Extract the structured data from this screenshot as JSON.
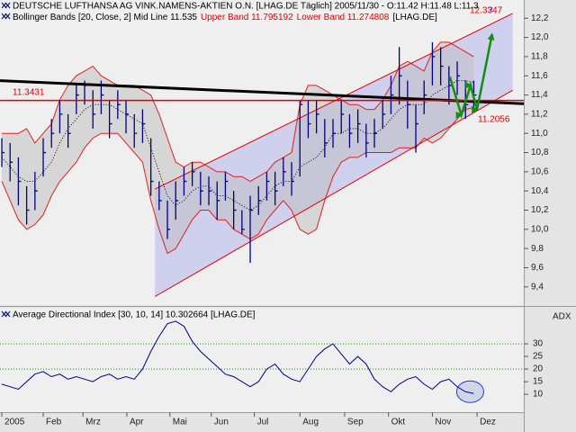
{
  "chart_data": [
    {
      "type": "ohlc",
      "title": "DEUTSCHE LUFTHANSA AG VINK.NAMENS-AKTIEN O.N. [LHAG.DE  Täglich] 2005/11/30 - O:11.42 H:11.48 L:11.3",
      "legend": [
        {
          "text": "Bollinger Bands [20, Close, 2] Mid Line 11.535",
          "color": "#000000"
        },
        {
          "text": "Upper Band 11.795192",
          "color": "#e00000"
        },
        {
          "text": "Lower Band 11.274808",
          "color": "#e00000"
        },
        {
          "text": "[LHAG.DE]",
          "color": "#000000"
        }
      ],
      "xlim": [
        -0.22,
        63.04
      ],
      "ylim": [
        9.22,
        12.39
      ],
      "yticks": [
        {
          "value": 9.4,
          "label": "9,4"
        },
        {
          "value": 9.6,
          "label": "9,6"
        },
        {
          "value": 9.8,
          "label": "9,8"
        },
        {
          "value": 10.0,
          "label": "10,0"
        },
        {
          "value": 10.2,
          "label": "10,2"
        },
        {
          "value": 10.4,
          "label": "10,4"
        },
        {
          "value": 10.6,
          "label": "10,6"
        },
        {
          "value": 10.8,
          "label": "10,8"
        },
        {
          "value": 11.0,
          "label": "11,0"
        },
        {
          "value": 11.2,
          "label": "11,2"
        },
        {
          "value": 11.4,
          "label": "11,4"
        },
        {
          "value": 11.6,
          "label": "11,6"
        },
        {
          "value": 11.8,
          "label": "11,8"
        },
        {
          "value": 12.0,
          "label": "12,0"
        },
        {
          "value": 12.2,
          "label": "12,2"
        }
      ],
      "color": "#000080",
      "high": [
        10.95,
        10.9,
        10.75,
        10.45,
        10.6,
        10.95,
        11.15,
        11.35,
        11.2,
        11.5,
        11.55,
        11.45,
        11.55,
        11.35,
        11.45,
        11.35,
        11.2,
        11.25,
        10.95,
        10.5,
        10.3,
        10.5,
        10.65,
        10.7,
        10.6,
        10.55,
        10.5,
        10.6,
        10.4,
        10.2,
        10.35,
        10.45,
        10.6,
        10.6,
        10.75,
        10.7,
        11.35,
        11.35,
        11.35,
        11.15,
        11.15,
        11.35,
        11.2,
        11.25,
        11.1,
        11.15,
        11.35,
        11.6,
        11.9,
        11.55,
        11.3,
        11.55,
        11.95,
        11.9,
        11.7,
        11.75,
        11.55,
        11.55
      ],
      "low": [
        10.65,
        10.5,
        10.25,
        10.05,
        10.2,
        10.55,
        10.85,
        11.0,
        10.85,
        11.2,
        11.3,
        11.05,
        11.2,
        10.95,
        11.15,
        11.0,
        10.85,
        10.9,
        10.35,
        10.2,
        9.9,
        10.1,
        10.35,
        10.45,
        10.25,
        10.25,
        10.1,
        10.3,
        10.0,
        9.95,
        9.65,
        10.15,
        10.3,
        10.25,
        10.45,
        10.35,
        10.55,
        10.95,
        11.0,
        10.75,
        10.85,
        11.0,
        10.85,
        10.9,
        10.75,
        10.85,
        11.05,
        11.2,
        11.3,
        11.05,
        10.8,
        11.2,
        11.5,
        11.5,
        11.3,
        11.4,
        11.15,
        11.25
      ],
      "close": [
        10.8,
        10.7,
        10.5,
        10.2,
        10.4,
        10.8,
        11.0,
        11.2,
        11.0,
        11.4,
        11.5,
        11.2,
        11.4,
        11.1,
        11.3,
        11.2,
        11.0,
        11.1,
        10.5,
        10.3,
        10.0,
        10.3,
        10.5,
        10.6,
        10.4,
        10.4,
        10.3,
        10.5,
        10.2,
        10.0,
        10.2,
        10.3,
        10.5,
        10.4,
        10.6,
        10.5,
        11.3,
        11.1,
        11.2,
        10.9,
        11.0,
        11.2,
        11.0,
        11.1,
        10.9,
        11.0,
        11.2,
        11.4,
        11.6,
        11.3,
        11.1,
        11.4,
        11.8,
        11.7,
        11.5,
        11.6,
        11.3,
        11.4
      ],
      "bands": {
        "line_color": "#e02020",
        "fill": "#bdbdbd",
        "mid_color": "#000000",
        "upper": [
          11.0,
          11.0,
          11.0,
          11.05,
          10.9,
          11.0,
          11.1,
          11.35,
          11.5,
          11.6,
          11.65,
          11.7,
          11.6,
          11.55,
          11.5,
          11.5,
          11.5,
          11.45,
          11.4,
          11.2,
          10.95,
          10.7,
          10.65,
          10.7,
          10.7,
          10.65,
          10.6,
          10.6,
          10.55,
          10.55,
          10.5,
          10.55,
          10.6,
          10.7,
          10.75,
          10.8,
          11.3,
          11.5,
          11.5,
          11.45,
          11.4,
          11.35,
          11.3,
          11.3,
          11.25,
          11.25,
          11.35,
          11.5,
          11.7,
          11.75,
          11.7,
          11.65,
          11.85,
          11.95,
          11.95,
          11.9,
          11.85,
          11.8
        ],
        "mid": [
          10.75,
          10.65,
          10.55,
          10.5,
          10.5,
          10.6,
          10.7,
          10.9,
          11.05,
          11.15,
          11.25,
          11.3,
          11.3,
          11.3,
          11.25,
          11.2,
          11.15,
          11.1,
          10.85,
          10.6,
          10.35,
          10.25,
          10.3,
          10.4,
          10.45,
          10.45,
          10.35,
          10.35,
          10.3,
          10.25,
          10.2,
          10.25,
          10.35,
          10.45,
          10.5,
          10.5,
          10.65,
          10.7,
          10.75,
          10.85,
          11.0,
          11.0,
          11.05,
          11.05,
          11.0,
          11.0,
          11.05,
          11.15,
          11.25,
          11.3,
          11.3,
          11.3,
          11.4,
          11.45,
          11.5,
          11.55,
          11.55,
          11.53
        ],
        "lower": [
          10.5,
          10.3,
          10.1,
          10.0,
          10.05,
          10.15,
          10.35,
          10.5,
          10.6,
          10.7,
          10.85,
          10.95,
          11.0,
          11.0,
          11.0,
          10.9,
          10.8,
          10.7,
          10.3,
          10.0,
          9.75,
          9.8,
          9.95,
          10.1,
          10.2,
          10.2,
          10.1,
          10.1,
          10.0,
          9.95,
          9.9,
          9.95,
          10.1,
          10.2,
          10.3,
          10.2,
          10.0,
          9.95,
          10.0,
          10.3,
          10.55,
          10.7,
          10.75,
          10.75,
          10.8,
          10.8,
          10.8,
          10.8,
          10.85,
          10.85,
          10.85,
          10.95,
          10.9,
          10.95,
          11.05,
          11.15,
          11.25,
          11.27
        ]
      },
      "channel": {
        "fill": "#b4b4ec",
        "line_color": "#e00000",
        "upper": {
          "x": [
            18.5,
            61.7
          ],
          "y": [
            10.42,
            12.25
          ]
        },
        "lower": {
          "x": [
            18.5,
            61.7
          ],
          "y": [
            9.3,
            11.45
          ]
        }
      },
      "lines": [
        {
          "color": "#000000",
          "x": [
            -0.22,
            63.04
          ],
          "y": [
            11.55,
            11.31
          ]
        },
        {
          "color": "#e00000",
          "x": [
            -0.22,
            63.04
          ],
          "y": [
            11.3431,
            11.3431
          ]
        }
      ],
      "arrow": {
        "color": "#109010",
        "x": [
          54.1,
          55.5,
          56.6,
          57.4,
          59.2
        ],
        "y": [
          11.59,
          11.19,
          11.5,
          11.25,
          12.03
        ]
      },
      "annotations": [
        {
          "text": "11.2056",
          "color": "#e00000"
        },
        {
          "text": "12.3347",
          "color": "#e00000"
        },
        {
          "text": "?",
          "color": "#2040c0"
        }
      ]
    },
    {
      "type": "line",
      "title": "Average Directional Index [30, 10, 14] 10.302664 [LHAG.DE]",
      "axis_label": "ADX",
      "xlim": [
        -0.22,
        63.04
      ],
      "ylim": [
        2.9,
        44.3
      ],
      "yticks": [
        10,
        15,
        20,
        25,
        30
      ],
      "reference_lines": [
        20,
        30
      ],
      "reference_color": "#109010",
      "color": "#000080",
      "highlight_color": "#2040c0",
      "values": [
        14,
        13,
        12,
        15,
        18,
        19,
        17,
        18,
        16,
        17,
        16,
        15,
        17,
        18,
        16,
        17,
        16,
        20,
        27,
        33,
        38,
        39,
        37,
        31,
        27,
        24,
        21,
        18,
        17,
        15,
        13,
        15,
        20,
        22,
        18,
        16,
        15,
        20,
        25,
        28,
        30,
        26,
        22,
        25,
        22,
        16,
        13,
        11,
        14,
        16,
        17,
        14,
        12,
        15,
        16,
        13,
        11,
        10.3
      ],
      "xticks": [
        {
          "value": 0,
          "label": "2005"
        },
        {
          "value": 5.0,
          "label": "Feb"
        },
        {
          "value": 9.8,
          "label": "Mrz"
        },
        {
          "value": 15.1,
          "label": "Apr"
        },
        {
          "value": 20.3,
          "label": "Mai"
        },
        {
          "value": 25.3,
          "label": "Jun"
        },
        {
          "value": 30.5,
          "label": "Jul"
        },
        {
          "value": 36.0,
          "label": "Aug"
        },
        {
          "value": 41.4,
          "label": "Sep"
        },
        {
          "value": 46.7,
          "label": "Okt"
        },
        {
          "value": 52.0,
          "label": "Nov"
        },
        {
          "value": 57.4,
          "label": "Dez"
        }
      ]
    }
  ]
}
